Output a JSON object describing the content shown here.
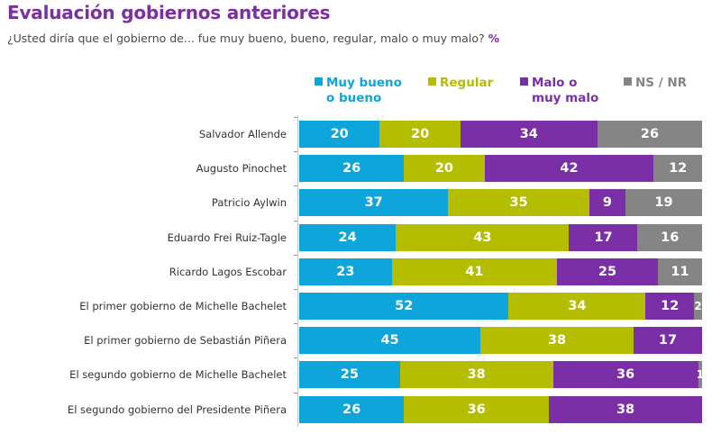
{
  "header": {
    "title": "Evaluación gobiernos anteriores",
    "subtitle": "¿Usted diría que el gobierno de... fue muy bueno, bueno, regular, malo o muy malo?",
    "unit": "%"
  },
  "chart_data": {
    "type": "bar",
    "orientation": "horizontal",
    "stacked": true,
    "title": "Evaluación gobiernos anteriores",
    "subtitle": "¿Usted diría que el gobierno de... fue muy bueno, bueno, regular, malo o muy malo? %",
    "xlabel": "",
    "ylabel": "",
    "xlim": [
      0,
      100
    ],
    "grid": false,
    "legend_position": "top",
    "categories": [
      "Salvador Allende",
      "Augusto Pinochet",
      "Patricio Aylwin",
      "Eduardo Frei Ruiz-Tagle",
      "Ricardo Lagos Escobar",
      "El primer gobierno de Michelle Bachelet",
      "El primer gobierno de Sebastián Piñera",
      "El segundo gobierno de Michelle Bachelet",
      "El segundo gobierno del Presidente Piñera"
    ],
    "series": [
      {
        "name": "Muy bueno o bueno",
        "legend_lines": [
          "Muy bueno",
          "o bueno"
        ],
        "color": "#0ea5db",
        "values": [
          20,
          26,
          37,
          24,
          23,
          52,
          45,
          25,
          26
        ]
      },
      {
        "name": "Regular",
        "legend_lines": [
          "Regular",
          ""
        ],
        "color": "#b5bd00",
        "values": [
          20,
          20,
          35,
          43,
          41,
          34,
          38,
          38,
          36
        ]
      },
      {
        "name": "Malo o muy malo",
        "legend_lines": [
          "Malo o",
          "muy malo"
        ],
        "color": "#7b2fa6",
        "values": [
          34,
          42,
          9,
          17,
          25,
          12,
          17,
          36,
          38
        ]
      },
      {
        "name": "NS / NR",
        "legend_lines": [
          "NS / NR",
          ""
        ],
        "color": "#858585",
        "values": [
          26,
          12,
          19,
          16,
          11,
          2,
          0,
          1,
          0
        ]
      }
    ]
  }
}
